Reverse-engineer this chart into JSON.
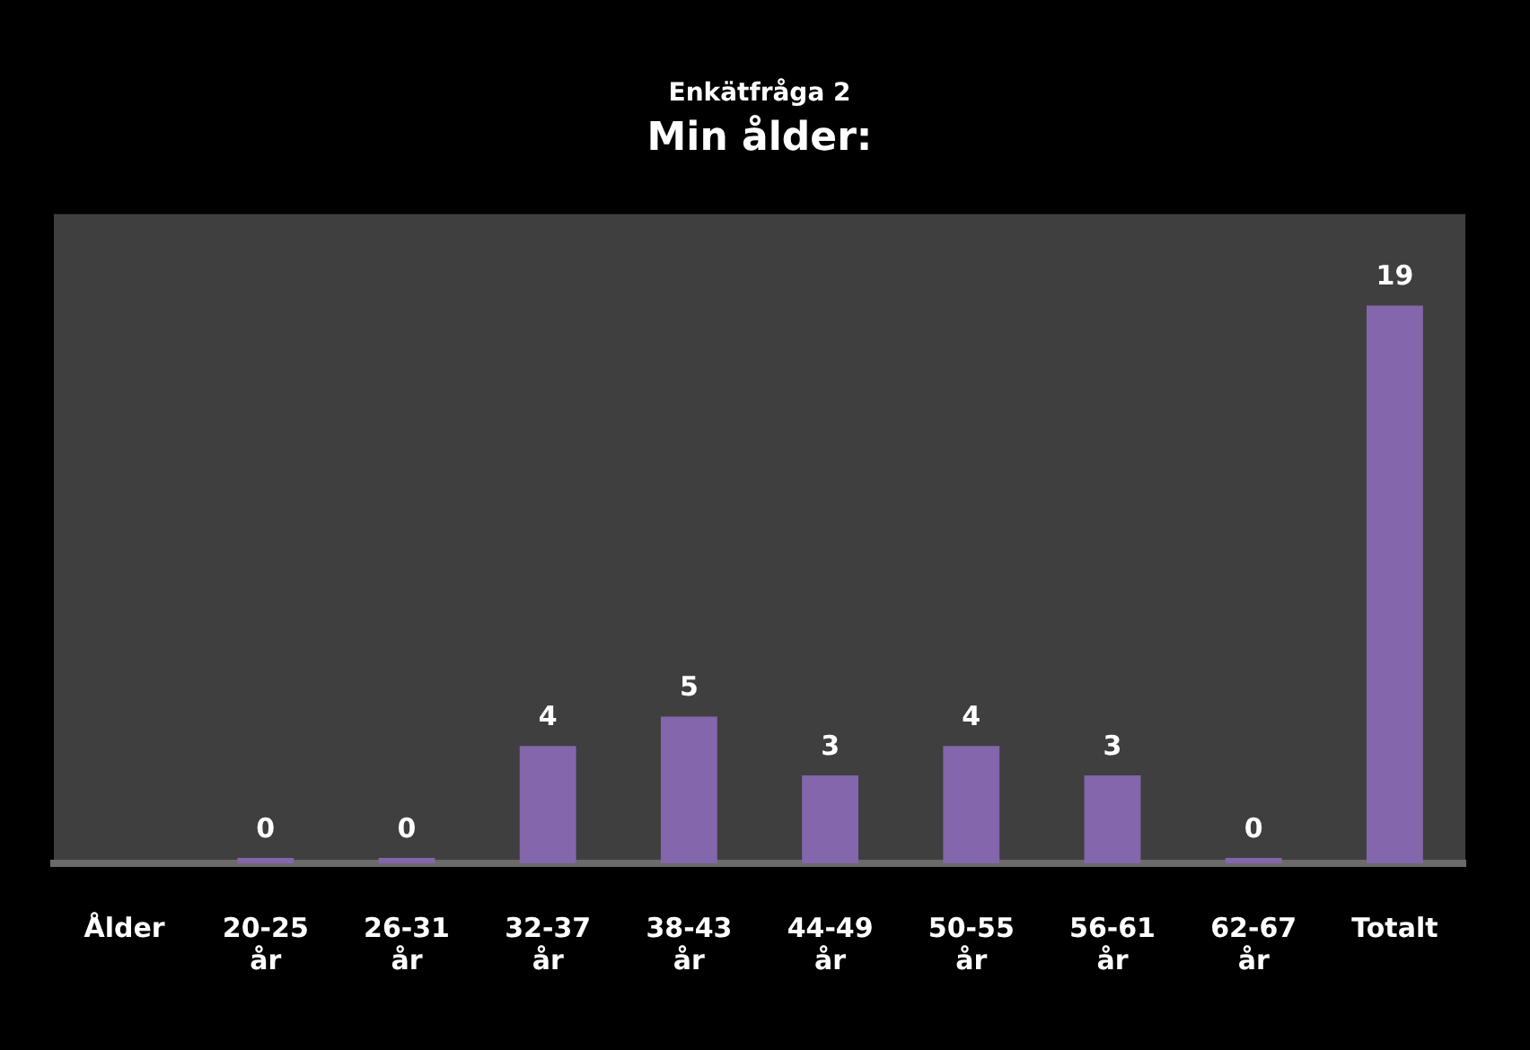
{
  "chart_data": {
    "type": "bar",
    "title": "Min ålder:",
    "subtitle": "Enkätfråga 2",
    "categories": [
      "Ålder",
      "20-25 år",
      "26-31 år",
      "32-37 år",
      "38-43 år",
      "44-49 år",
      "50-55 år",
      "56-61 år",
      "62-67 år",
      "Totalt"
    ],
    "values": [
      null,
      0,
      0,
      4,
      5,
      3,
      4,
      3,
      0,
      19
    ],
    "color": "#8366ab",
    "data_labels": true
  }
}
